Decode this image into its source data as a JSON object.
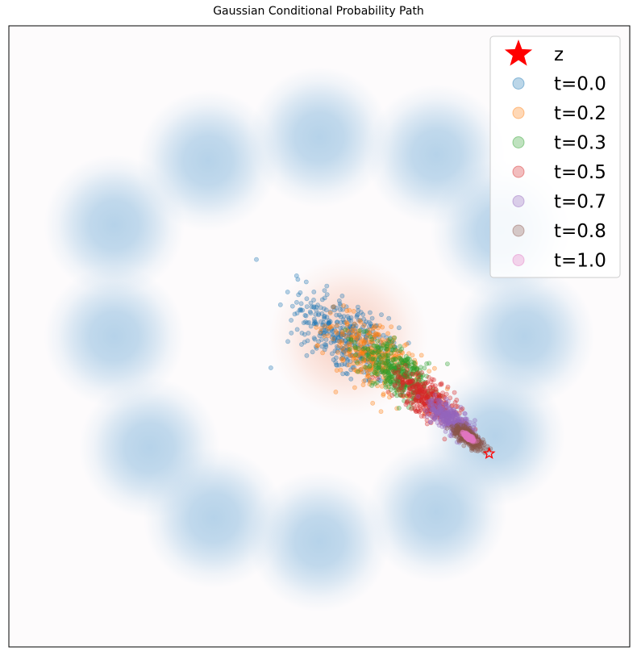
{
  "chart_data": {
    "type": "scatter",
    "title": "Gaussian Conditional Probability Path",
    "xlabel": "",
    "ylabel": "",
    "xlim": [
      -5.3,
      5.3
    ],
    "ylim": [
      -5.3,
      5.3
    ],
    "grid": false,
    "ticks_visible": false,
    "legend_position": "top-right",
    "background_color": "#fdfbfc",
    "target_density": {
      "description_visible": false,
      "component_centers": [
        [
          0.0,
          3.4
        ],
        [
          2.0,
          3.1
        ],
        [
          3.1,
          1.8
        ],
        [
          3.5,
          0.0
        ],
        [
          3.0,
          -1.7
        ],
        [
          2.0,
          -3.0
        ],
        [
          0.0,
          -3.5
        ],
        [
          -1.8,
          -3.1
        ],
        [
          -2.9,
          -1.9
        ],
        [
          -3.5,
          0.0
        ],
        [
          -3.5,
          1.9
        ],
        [
          -1.9,
          3.0
        ]
      ],
      "component_std": 0.6,
      "color": "#9ec5e3"
    },
    "source_density": {
      "center": [
        0.5,
        0.0
      ],
      "std": 1.0,
      "color": "#f6b59e"
    },
    "z": {
      "label": "z",
      "point": [
        2.9,
        -2.0
      ],
      "color": "#ff0000",
      "marker": "star"
    },
    "series": [
      {
        "name": "t=0.0",
        "t": 0.0,
        "color": "#1f77b4",
        "mean": [
          0.45,
          0.0
        ],
        "std": 0.55
      },
      {
        "name": "t=0.2",
        "t": 0.2,
        "color": "#ff7f0e",
        "mean": [
          0.95,
          -0.35
        ],
        "std": 0.44
      },
      {
        "name": "t=0.3",
        "t": 0.3,
        "color": "#2ca02c",
        "mean": [
          1.35,
          -0.62
        ],
        "std": 0.35
      },
      {
        "name": "t=0.5",
        "t": 0.5,
        "color": "#d62728",
        "mean": [
          1.85,
          -1.05
        ],
        "std": 0.26
      },
      {
        "name": "t=0.7",
        "t": 0.7,
        "color": "#9467bd",
        "mean": [
          2.25,
          -1.42
        ],
        "std": 0.18
      },
      {
        "name": "t=0.8",
        "t": 0.8,
        "color": "#8c564b",
        "mean": [
          2.55,
          -1.72
        ],
        "std": 0.11
      },
      {
        "name": "t=1.0",
        "t": 1.0,
        "color": "#e377c2",
        "mean": [
          2.55,
          -1.72
        ],
        "std": 0.03
      }
    ]
  }
}
